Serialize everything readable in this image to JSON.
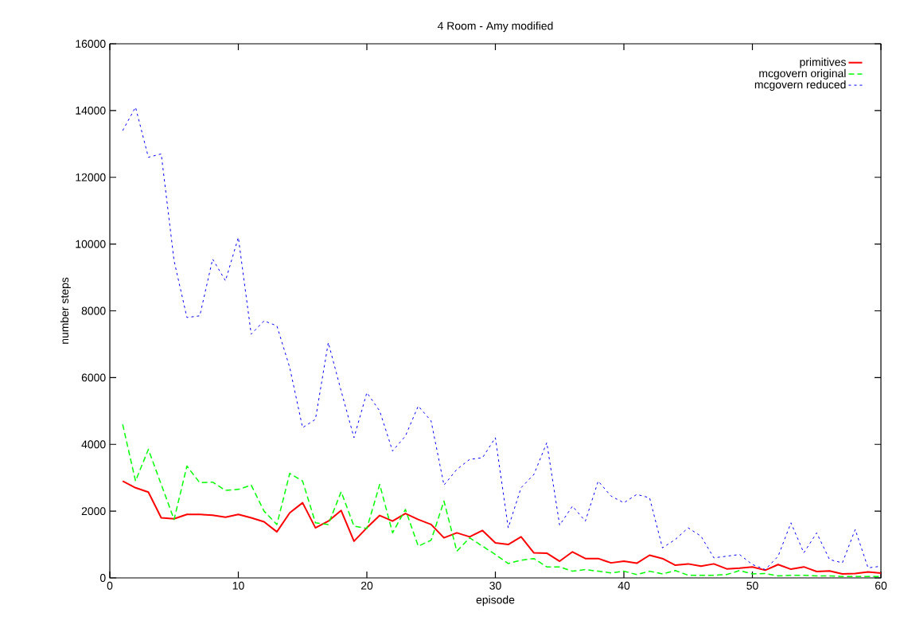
{
  "chart_data": {
    "type": "line",
    "title": "4 Room - Amy modified",
    "xlabel": "episode",
    "ylabel": "number steps",
    "x": [
      1,
      2,
      3,
      4,
      5,
      6,
      7,
      8,
      9,
      10,
      11,
      12,
      13,
      14,
      15,
      16,
      17,
      18,
      19,
      20,
      21,
      22,
      23,
      24,
      25,
      26,
      27,
      28,
      29,
      30,
      31,
      32,
      33,
      34,
      35,
      36,
      37,
      38,
      39,
      40,
      41,
      42,
      43,
      44,
      45,
      46,
      47,
      48,
      49,
      50,
      51,
      52,
      53,
      54,
      55,
      56,
      57,
      58,
      59,
      60
    ],
    "series": [
      {
        "name": "primitives",
        "color": "#ff0000",
        "line_style": "solid",
        "values": [
          2900,
          2700,
          2570,
          1800,
          1770,
          1900,
          1900,
          1880,
          1820,
          1900,
          1800,
          1680,
          1380,
          1950,
          2250,
          1500,
          1700,
          2020,
          1100,
          1500,
          1870,
          1700,
          1930,
          1750,
          1600,
          1200,
          1350,
          1230,
          1420,
          1050,
          1000,
          1230,
          750,
          740,
          500,
          780,
          580,
          580,
          450,
          500,
          440,
          680,
          580,
          380,
          420,
          350,
          420,
          270,
          290,
          330,
          230,
          400,
          260,
          330,
          190,
          210,
          120,
          130,
          180,
          140
        ]
      },
      {
        "name": "mcgovern original",
        "color": "#00ff00",
        "line_style": "dashed",
        "values": [
          4600,
          2900,
          3850,
          2800,
          1750,
          3350,
          2850,
          2870,
          2620,
          2650,
          2780,
          2000,
          1600,
          3130,
          2900,
          1650,
          1600,
          2580,
          1550,
          1480,
          2800,
          1350,
          2050,
          950,
          1130,
          2300,
          800,
          1200,
          950,
          700,
          430,
          530,
          580,
          330,
          330,
          200,
          250,
          200,
          150,
          200,
          100,
          200,
          120,
          220,
          80,
          80,
          80,
          100,
          220,
          120,
          130,
          60,
          80,
          80,
          60,
          60,
          40,
          40,
          40,
          40
        ]
      },
      {
        "name": "mcgovern reduced",
        "color": "#0000ff",
        "line_style": "dotted",
        "values": [
          13400,
          14100,
          12600,
          12700,
          9500,
          7800,
          7850,
          9550,
          8900,
          10200,
          7300,
          7700,
          7550,
          6300,
          4500,
          4750,
          7050,
          5600,
          4200,
          5550,
          5000,
          3800,
          4250,
          5150,
          4700,
          2780,
          3250,
          3550,
          3600,
          4200,
          1500,
          2700,
          3100,
          4050,
          1580,
          2150,
          1700,
          2900,
          2450,
          2250,
          2500,
          2400,
          900,
          1150,
          1500,
          1250,
          600,
          650,
          700,
          400,
          250,
          650,
          1650,
          750,
          1350,
          550,
          450,
          1450,
          300,
          350
        ]
      }
    ],
    "xlim": [
      0,
      60
    ],
    "ylim": [
      0,
      16000
    ],
    "xticks": [
      0,
      10,
      20,
      30,
      40,
      50,
      60
    ],
    "yticks": [
      0,
      2000,
      4000,
      6000,
      8000,
      10000,
      12000,
      14000,
      16000
    ],
    "legend": "top right",
    "grid": false,
    "marker": "none"
  }
}
